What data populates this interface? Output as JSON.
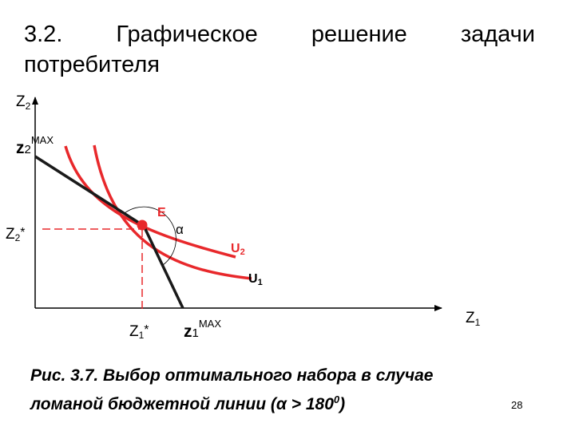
{
  "slide": {
    "title_words": [
      "3.2.",
      "Графическое",
      "решение",
      "задачи"
    ],
    "title_line2": "потребителя",
    "caption_line1": "Рис. 3.7. Выбор оптимального набора в случае",
    "caption_line2_main": "ломаной бюджетной линии (α > 180",
    "caption_line2_sup": "0",
    "caption_line2_end": ")",
    "page_number": "28"
  },
  "diagram": {
    "y_axis_label": "Z",
    "y_axis_sub": "2",
    "y_max_main": "z",
    "y_max_sub": "2",
    "y_max_sup": "MAX",
    "y_opt_main": "Z",
    "y_opt_sub": "2",
    "y_opt_star": "*",
    "x_axis_label": "Z",
    "x_axis_sub": "1",
    "x_opt_main": "Z",
    "x_opt_sub": "1",
    "x_opt_star": "*",
    "x_max_main": "z",
    "x_max_sub": "1",
    "x_max_sup": "MAX",
    "point_label": "E",
    "angle_label": "α",
    "curve_u2_main": "U",
    "curve_u2_sub": "2",
    "curve_u1_main": "U",
    "curve_u1_sub": "1",
    "colors": {
      "curves": "#e8282b",
      "budget_line": "#1a1a1a",
      "guides": "#e8282b",
      "axes": "#000000"
    }
  }
}
